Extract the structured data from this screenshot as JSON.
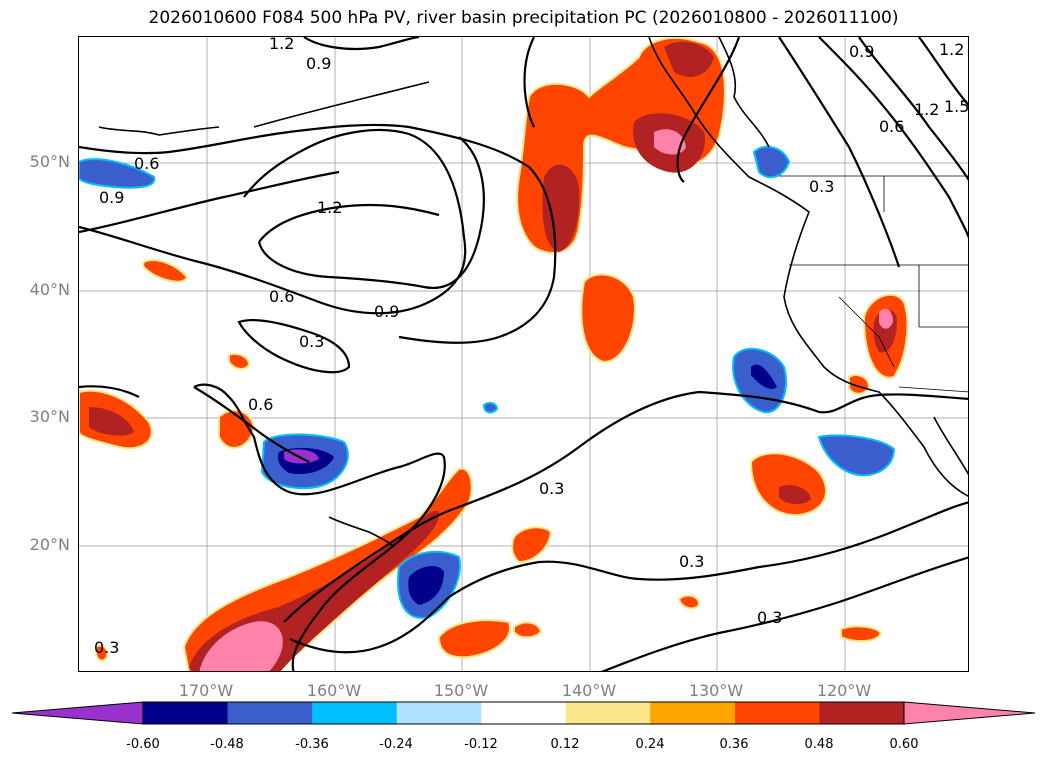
{
  "title": "2026010600 F084 500 hPa PV, river basin precipitation PC (2026010800 - 2026011100)",
  "lat_labels": [
    "50°N",
    "40°N",
    "30°N",
    "20°N"
  ],
  "lon_labels": [
    "170°W",
    "160°W",
    "150°W",
    "140°W",
    "130°W",
    "120°W"
  ],
  "contour_labels": [
    "1.2",
    "0.9",
    "0.6",
    "0.9",
    "1.2",
    "0.6",
    "0.9",
    "0.3",
    "0.6",
    "0.3",
    "0.3",
    "0.3",
    "0.3",
    "0.9",
    "1.2",
    "1.5",
    "0.6",
    "0.3",
    "1.2"
  ],
  "colorbar": {
    "ticks": [
      "-0.60",
      "-0.48",
      "-0.36",
      "-0.24",
      "-0.12",
      "0.12",
      "0.24",
      "0.36",
      "0.48",
      "0.60"
    ],
    "colors": [
      "#9932cc",
      "#00008b",
      "#3a5fcd",
      "#00bfff",
      "#b0e2ff",
      "#ffffff",
      "#fde68a",
      "#ffa500",
      "#ff4500",
      "#b22222",
      "#ff82ab",
      "#ff82ab"
    ]
  }
}
